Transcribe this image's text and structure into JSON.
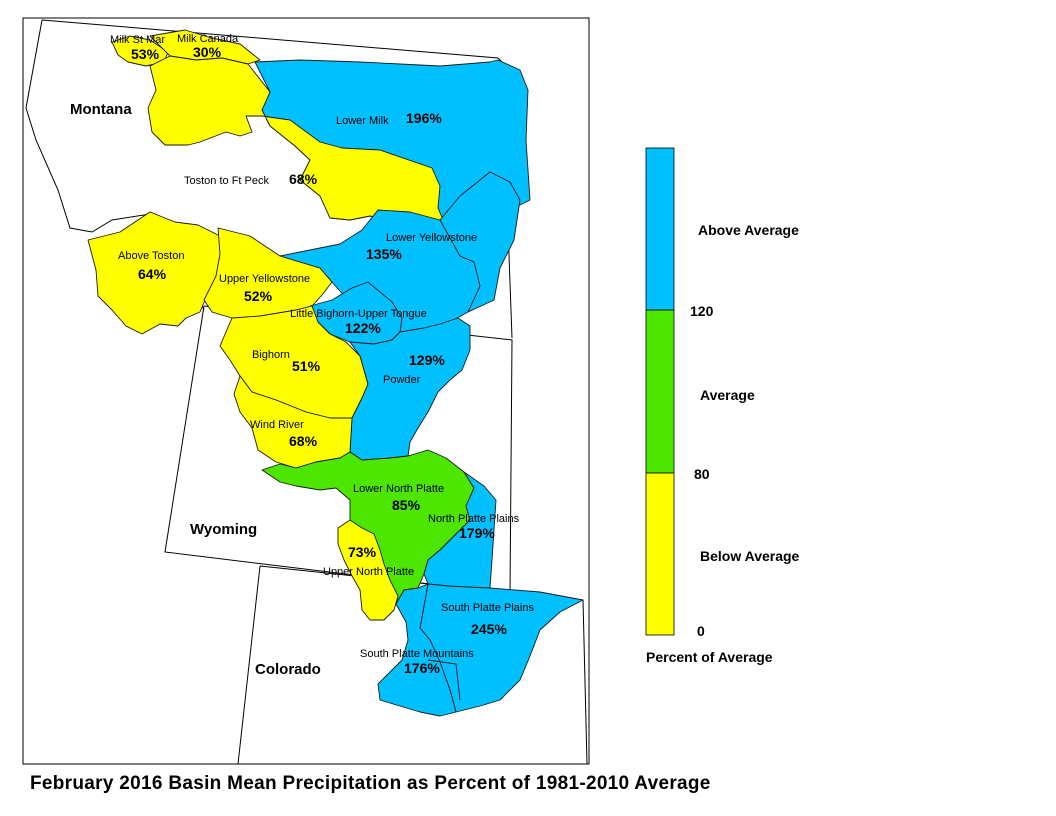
{
  "title": "February 2016 Basin Mean Precipitation as Percent of 1981-2010 Average",
  "colors": {
    "above": "#00C0FF",
    "average": "#4CE600",
    "below": "#FFFF00"
  },
  "states": [
    "Montana",
    "Wyoming",
    "Colorado"
  ],
  "basins": [
    {
      "name": "Milk St Mary",
      "label": "Milk St Mar",
      "percent": "53%",
      "category": "below"
    },
    {
      "name": "Milk Canada",
      "label": "Milk Canada",
      "percent": "30%",
      "category": "below"
    },
    {
      "name": "Lower Milk",
      "label": "Lower Milk",
      "percent": "196%",
      "category": "above"
    },
    {
      "name": "Toston to Ft Peck",
      "label": "Toston to Ft Peck",
      "percent": "68%",
      "category": "below"
    },
    {
      "name": "Above Toston",
      "label": "Above Toston",
      "percent": "64%",
      "category": "below"
    },
    {
      "name": "Upper Yellowstone",
      "label": "Upper Yellowstone",
      "percent": "52%",
      "category": "below"
    },
    {
      "name": "Lower Yellowstone",
      "label": "Lower Yellowstone",
      "percent": "135%",
      "category": "above"
    },
    {
      "name": "Little Bighorn-Upper Tongue",
      "label": "Little Bighorn-Upper Tongue",
      "percent": "122%",
      "category": "above"
    },
    {
      "name": "Bighorn",
      "label": "Bighorn",
      "percent": "51%",
      "category": "below"
    },
    {
      "name": "Powder",
      "label": "Powder",
      "percent": "129%",
      "category": "above"
    },
    {
      "name": "Wind River",
      "label": "Wind River",
      "percent": "68%",
      "category": "below"
    },
    {
      "name": "Lower North Platte",
      "label": "Lower North Platte",
      "percent": "85%",
      "category": "average"
    },
    {
      "name": "North Platte Plains",
      "label": "North Platte Plains",
      "percent": "179%",
      "category": "above"
    },
    {
      "name": "Upper North Platte",
      "label": "Upper North Platte",
      "percent": "73%",
      "category": "below"
    },
    {
      "name": "South Platte Plains",
      "label": "South Platte Plains",
      "percent": "245%",
      "category": "above"
    },
    {
      "name": "South Platte Mountains",
      "label": "South Platte Mountains",
      "percent": "176%",
      "category": "above"
    }
  ],
  "legend": {
    "classes": [
      {
        "label": "Above Average",
        "category": "above"
      },
      {
        "label": "Average",
        "category": "average"
      },
      {
        "label": "Below Average",
        "category": "below"
      }
    ],
    "breaks": [
      "120",
      "80",
      "0"
    ],
    "title": "Percent of Average"
  }
}
